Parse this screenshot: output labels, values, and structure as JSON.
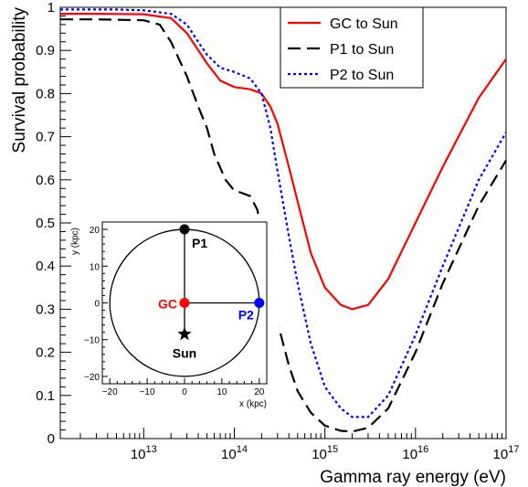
{
  "chart_data": {
    "type": "line",
    "xlabel": "Gamma ray energy (eV)",
    "ylabel": "Survival probability",
    "xscale": "log",
    "xlim": [
      1200000000000.0,
      1e+17
    ],
    "ylim": [
      0,
      1
    ],
    "grid": false,
    "legend_position": "top-right",
    "x_ticks": [
      {
        "value": 10000000000000.0,
        "base": "10",
        "exp": "13"
      },
      {
        "value": 100000000000000.0,
        "base": "10",
        "exp": "14"
      },
      {
        "value": 1000000000000000.0,
        "base": "10",
        "exp": "15"
      },
      {
        "value": 1e+16,
        "base": "10",
        "exp": "16"
      },
      {
        "value": 1e+17,
        "base": "10",
        "exp": "17"
      }
    ],
    "y_ticks": [
      {
        "value": 0,
        "label": "0"
      },
      {
        "value": 0.1,
        "label": "0.1"
      },
      {
        "value": 0.2,
        "label": "0.2"
      },
      {
        "value": 0.3,
        "label": "0.3"
      },
      {
        "value": 0.4,
        "label": "0.4"
      },
      {
        "value": 0.5,
        "label": "0.5"
      },
      {
        "value": 0.6,
        "label": "0.6"
      },
      {
        "value": 0.7,
        "label": "0.7"
      },
      {
        "value": 0.8,
        "label": "0.8"
      },
      {
        "value": 0.9,
        "label": "0.9"
      },
      {
        "value": 1,
        "label": "1"
      }
    ],
    "series": [
      {
        "name": "GC to Sun",
        "color": "#ff0000",
        "style": "solid",
        "points": [
          [
            1200000000000.0,
            0.985
          ],
          [
            3000000000000.0,
            0.985
          ],
          [
            10000000000000.0,
            0.984
          ],
          [
            20000000000000.0,
            0.975
          ],
          [
            30000000000000.0,
            0.94
          ],
          [
            50000000000000.0,
            0.87
          ],
          [
            70000000000000.0,
            0.83
          ],
          [
            100000000000000.0,
            0.815
          ],
          [
            150000000000000.0,
            0.81
          ],
          [
            200000000000000.0,
            0.8
          ],
          [
            250000000000000.0,
            0.77
          ],
          [
            300000000000000.0,
            0.73
          ],
          [
            400000000000000.0,
            0.63
          ],
          [
            500000000000000.0,
            0.55
          ],
          [
            700000000000000.0,
            0.43
          ],
          [
            1000000000000000.0,
            0.35
          ],
          [
            1500000000000000.0,
            0.31
          ],
          [
            2000000000000000.0,
            0.3
          ],
          [
            3000000000000000.0,
            0.31
          ],
          [
            5000000000000000.0,
            0.37
          ],
          [
            1e+16,
            0.5
          ],
          [
            2e+16,
            0.63
          ],
          [
            5e+16,
            0.79
          ],
          [
            1e+17,
            0.88
          ]
        ]
      },
      {
        "name": "P1 to Sun",
        "color": "#000000",
        "style": "dashed",
        "points": [
          [
            1200000000000.0,
            0.972
          ],
          [
            3000000000000.0,
            0.972
          ],
          [
            10000000000000.0,
            0.97
          ],
          [
            15000000000000.0,
            0.96
          ],
          [
            20000000000000.0,
            0.92
          ],
          [
            30000000000000.0,
            0.84
          ],
          [
            40000000000000.0,
            0.77
          ],
          [
            50000000000000.0,
            0.72
          ],
          [
            60000000000000.0,
            0.66
          ],
          [
            80000000000000.0,
            0.6
          ],
          [
            100000000000000.0,
            0.575
          ],
          [
            120000000000000.0,
            0.57
          ],
          [
            150000000000000.0,
            0.562
          ],
          [
            180000000000000.0,
            0.53
          ],
          [
            200000000000000.0,
            0.47
          ],
          [
            250000000000000.0,
            0.36
          ],
          [
            300000000000000.0,
            0.27
          ],
          [
            400000000000000.0,
            0.17
          ],
          [
            500000000000000.0,
            0.11
          ],
          [
            700000000000000.0,
            0.06
          ],
          [
            1000000000000000.0,
            0.03
          ],
          [
            1500000000000000.0,
            0.018
          ],
          [
            2000000000000000.0,
            0.016
          ],
          [
            3000000000000000.0,
            0.025
          ],
          [
            5000000000000000.0,
            0.07
          ],
          [
            1e+16,
            0.2
          ],
          [
            2e+16,
            0.36
          ],
          [
            5e+16,
            0.54
          ],
          [
            1e+17,
            0.645
          ]
        ]
      },
      {
        "name": "P2 to Sun",
        "color": "#0000ff",
        "style": "dotted",
        "points": [
          [
            1200000000000.0,
            0.995
          ],
          [
            5000000000000.0,
            0.995
          ],
          [
            10000000000000.0,
            0.993
          ],
          [
            20000000000000.0,
            0.985
          ],
          [
            30000000000000.0,
            0.96
          ],
          [
            40000000000000.0,
            0.92
          ],
          [
            50000000000000.0,
            0.89
          ],
          [
            70000000000000.0,
            0.86
          ],
          [
            100000000000000.0,
            0.85
          ],
          [
            150000000000000.0,
            0.835
          ],
          [
            200000000000000.0,
            0.8
          ],
          [
            250000000000000.0,
            0.72
          ],
          [
            300000000000000.0,
            0.62
          ],
          [
            400000000000000.0,
            0.47
          ],
          [
            500000000000000.0,
            0.36
          ],
          [
            700000000000000.0,
            0.22
          ],
          [
            1000000000000000.0,
            0.12
          ],
          [
            1500000000000000.0,
            0.07
          ],
          [
            2000000000000000.0,
            0.05
          ],
          [
            3000000000000000.0,
            0.05
          ],
          [
            5000000000000000.0,
            0.1
          ],
          [
            1e+16,
            0.24
          ],
          [
            2e+16,
            0.4
          ],
          [
            5e+16,
            0.6
          ],
          [
            1e+17,
            0.71
          ]
        ]
      }
    ]
  },
  "inset": {
    "xlabel": "x (kpc)",
    "ylabel": "y (kpc)",
    "xlim": [
      -22,
      22
    ],
    "ylim": [
      -22,
      22
    ],
    "circle_radius": 20,
    "x_ticks": [
      {
        "value": -20,
        "label": "−20"
      },
      {
        "value": -10,
        "label": "−10"
      },
      {
        "value": 0,
        "label": "0"
      },
      {
        "value": 10,
        "label": "10"
      },
      {
        "value": 20,
        "label": "20"
      }
    ],
    "y_ticks": [
      {
        "value": -20,
        "label": "−20"
      },
      {
        "value": -10,
        "label": "−10"
      },
      {
        "value": 0,
        "label": "0"
      },
      {
        "value": 10,
        "label": "10"
      },
      {
        "value": 20,
        "label": "20"
      }
    ],
    "points": [
      {
        "name": "GC",
        "x": 0,
        "y": 0,
        "color": "#ff0000",
        "marker": "circle"
      },
      {
        "name": "P1",
        "x": 0,
        "y": 20,
        "color": "#000000",
        "marker": "circle"
      },
      {
        "name": "P2",
        "x": 20,
        "y": 0,
        "color": "#0000ff",
        "marker": "circle"
      },
      {
        "name": "Sun",
        "x": 0,
        "y": -8.5,
        "color": "#000000",
        "marker": "star"
      }
    ]
  }
}
